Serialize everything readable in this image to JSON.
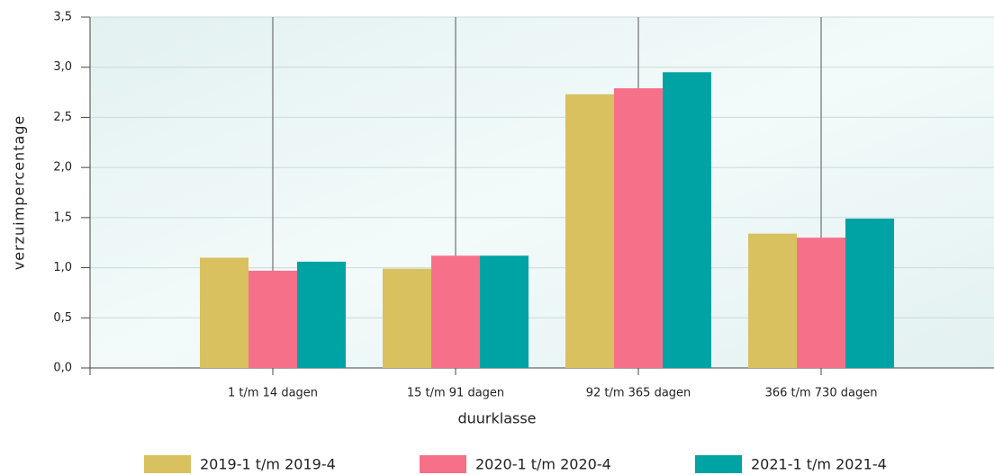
{
  "chart_data": {
    "type": "bar",
    "x_label": "duurklasse",
    "y_label": "verzuimpercentage",
    "categories": [
      "1 t/m 14 dagen",
      "15 t/m 91 dagen",
      "92 t/m 365 dagen",
      "366 t/m 730 dagen"
    ],
    "series": [
      {
        "name": "2019-1 t/m 2019-4",
        "color": "#d9c160",
        "values": [
          1.1,
          0.99,
          2.73,
          1.34
        ]
      },
      {
        "name": "2020-1 t/m 2020-4",
        "color": "#f7708a",
        "values": [
          0.97,
          1.12,
          2.79,
          1.3
        ]
      },
      {
        "name": "2021-1 t/m 2021-4",
        "color": "#00a3a3",
        "values": [
          1.06,
          1.12,
          2.95,
          1.49
        ]
      }
    ],
    "ylim": [
      0,
      3.5
    ],
    "yticks": [
      {
        "value": 0,
        "label": "0,0"
      },
      {
        "value": 0.5,
        "label": "0,5"
      },
      {
        "value": 1,
        "label": "1,0"
      },
      {
        "value": 1.5,
        "label": "1,5"
      },
      {
        "value": 2,
        "label": "2,0"
      },
      {
        "value": 2.5,
        "label": "2,5"
      },
      {
        "value": 3,
        "label": "3,0"
      },
      {
        "value": 3.5,
        "label": "3,5"
      }
    ],
    "grid": true
  }
}
